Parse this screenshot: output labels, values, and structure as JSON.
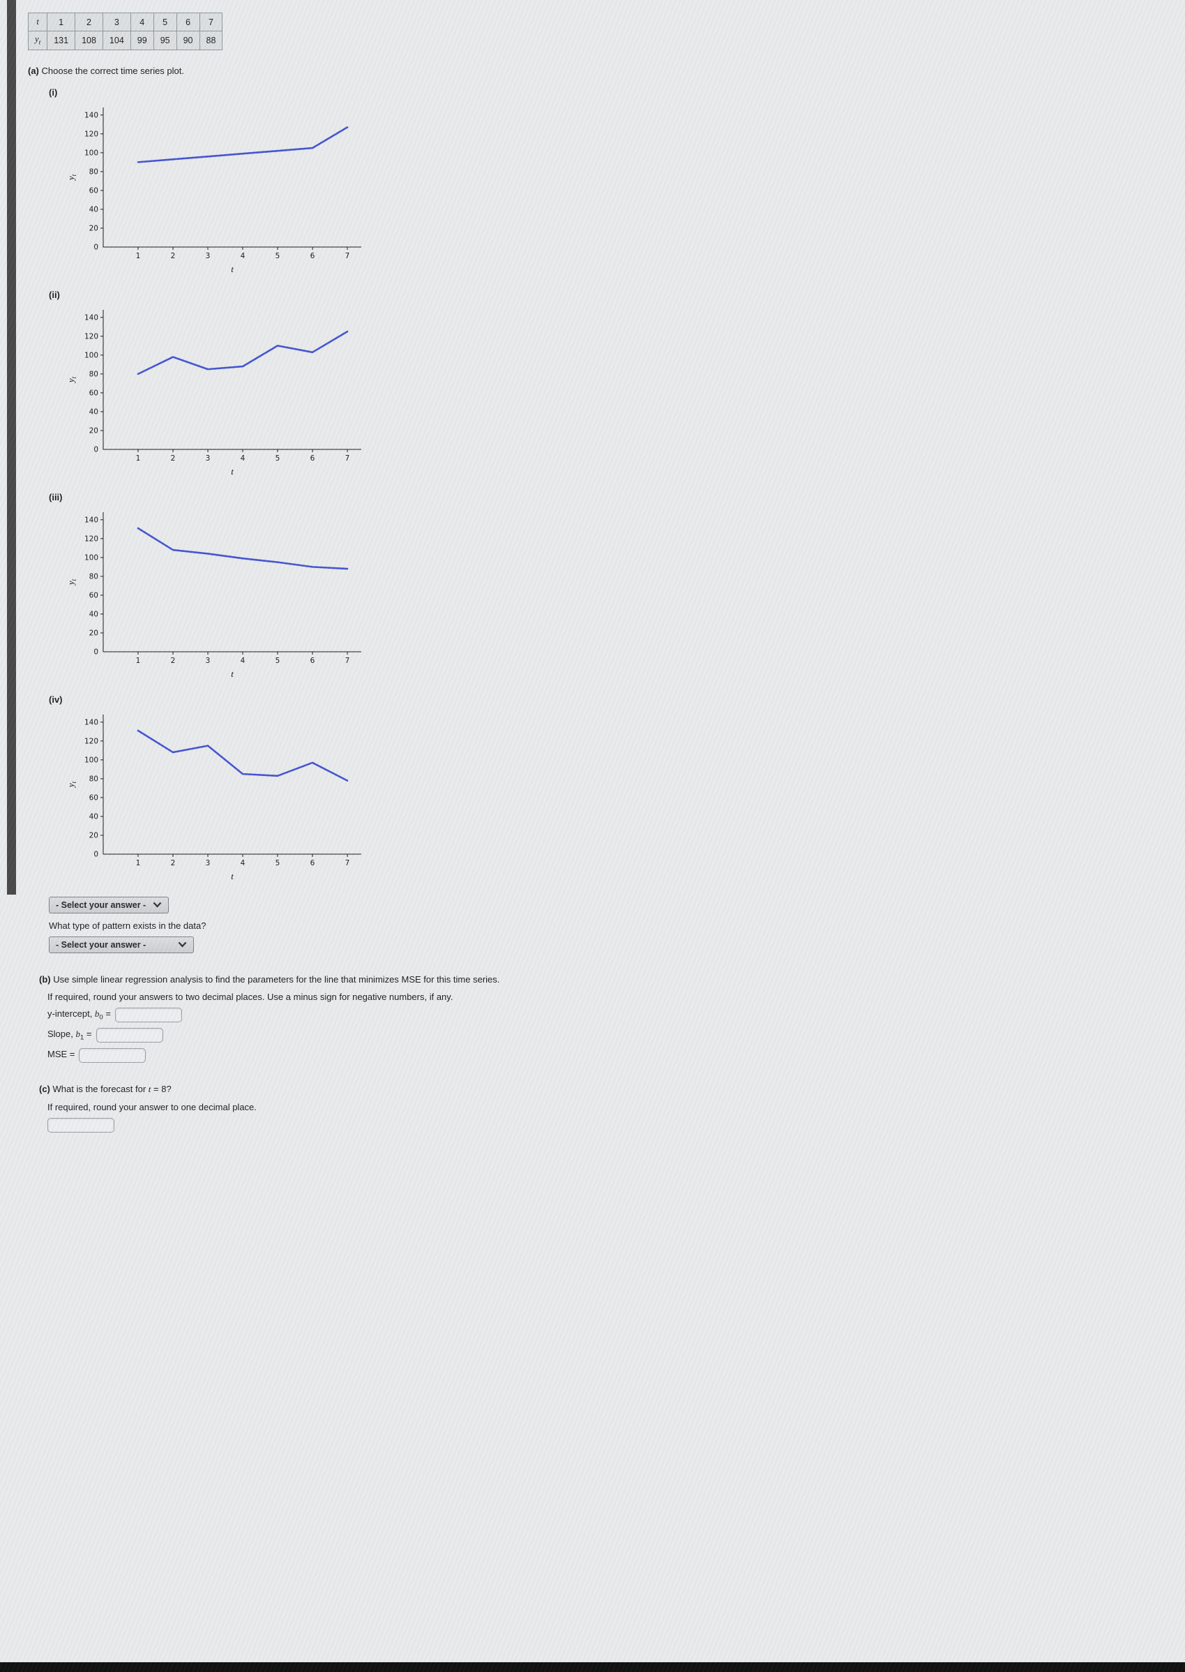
{
  "window": {
    "background": "#e8eaeb",
    "line_blue": "#4253d0"
  },
  "data_table": {
    "t_label": "t",
    "y_label_main": "y",
    "y_label_sub": "t",
    "t_values": [
      "1",
      "2",
      "3",
      "4",
      "5",
      "6",
      "7"
    ],
    "y_values": [
      "131",
      "108",
      "104",
      "99",
      "95",
      "90",
      "88"
    ]
  },
  "part_a": {
    "marker": "(a)",
    "prompt": "Choose the correct time series plot.",
    "plot_select_label": "- Select your answer -",
    "pattern_question": "What type of pattern exists in the data?",
    "pattern_select_label": "- Select your answer -"
  },
  "part_b": {
    "marker": "(b)",
    "prompt": "Use simple linear regression analysis to find the parameters for the line that minimizes MSE for this time series.",
    "note": "If required, round your answers to two decimal places. Use a minus sign for negative numbers, if any.",
    "fields": [
      {
        "label": "y-intercept, ",
        "var": "b",
        "sub": "0",
        "eq": " =",
        "value": ""
      },
      {
        "label": "Slope, ",
        "var": "b",
        "sub": "1",
        "eq": " =",
        "value": ""
      },
      {
        "label": "MSE",
        "var": "",
        "sub": "",
        "eq": " =",
        "value": ""
      }
    ]
  },
  "part_c": {
    "marker": "(c)",
    "prompt_pre": "What is the forecast for ",
    "prompt_var": "t",
    "prompt_post": " = 8?",
    "note": "If required, round your answer to one decimal place.",
    "value": ""
  },
  "chart_data": [
    {
      "type": "line",
      "label": "(i)",
      "x": [
        1,
        2,
        3,
        4,
        5,
        6,
        7
      ],
      "values": [
        90,
        93,
        96,
        99,
        102,
        105,
        127
      ],
      "xticks": [
        1,
        2,
        3,
        4,
        5,
        6,
        7
      ],
      "yticks": [
        0,
        20,
        40,
        60,
        80,
        100,
        120,
        140
      ],
      "xlim": [
        0,
        7.4
      ],
      "ylim": [
        0,
        148
      ],
      "xlabel": "t",
      "ylabel_main": "y",
      "ylabel_sub": "t",
      "line_color": "#4253d0",
      "grid": false,
      "legend": false
    },
    {
      "type": "line",
      "label": "(ii)",
      "x": [
        1,
        2,
        3,
        4,
        5,
        6,
        7
      ],
      "values": [
        80,
        98,
        85,
        88,
        110,
        103,
        125
      ],
      "xticks": [
        1,
        2,
        3,
        4,
        5,
        6,
        7
      ],
      "yticks": [
        0,
        20,
        40,
        60,
        80,
        100,
        120,
        140
      ],
      "xlim": [
        0,
        7.4
      ],
      "ylim": [
        0,
        148
      ],
      "xlabel": "t",
      "ylabel_main": "y",
      "ylabel_sub": "t",
      "line_color": "#4253d0",
      "grid": false,
      "legend": false
    },
    {
      "type": "line",
      "label": "(iii)",
      "x": [
        1,
        2,
        3,
        4,
        5,
        6,
        7
      ],
      "values": [
        131,
        108,
        104,
        99,
        95,
        90,
        88
      ],
      "xticks": [
        1,
        2,
        3,
        4,
        5,
        6,
        7
      ],
      "yticks": [
        0,
        20,
        40,
        60,
        80,
        100,
        120,
        140
      ],
      "xlim": [
        0,
        7.4
      ],
      "ylim": [
        0,
        148
      ],
      "xlabel": "t",
      "ylabel_main": "y",
      "ylabel_sub": "t",
      "line_color": "#4253d0",
      "grid": false,
      "legend": false
    },
    {
      "type": "line",
      "label": "(iv)",
      "x": [
        1,
        2,
        3,
        4,
        5,
        6,
        7
      ],
      "values": [
        131,
        108,
        115,
        85,
        83,
        97,
        78
      ],
      "xticks": [
        1,
        2,
        3,
        4,
        5,
        6,
        7
      ],
      "yticks": [
        0,
        20,
        40,
        60,
        80,
        100,
        120,
        140
      ],
      "xlim": [
        0,
        7.4
      ],
      "ylim": [
        0,
        148
      ],
      "xlabel": "t",
      "ylabel_main": "y",
      "ylabel_sub": "t",
      "line_color": "#4253d0",
      "grid": false,
      "legend": false
    }
  ]
}
